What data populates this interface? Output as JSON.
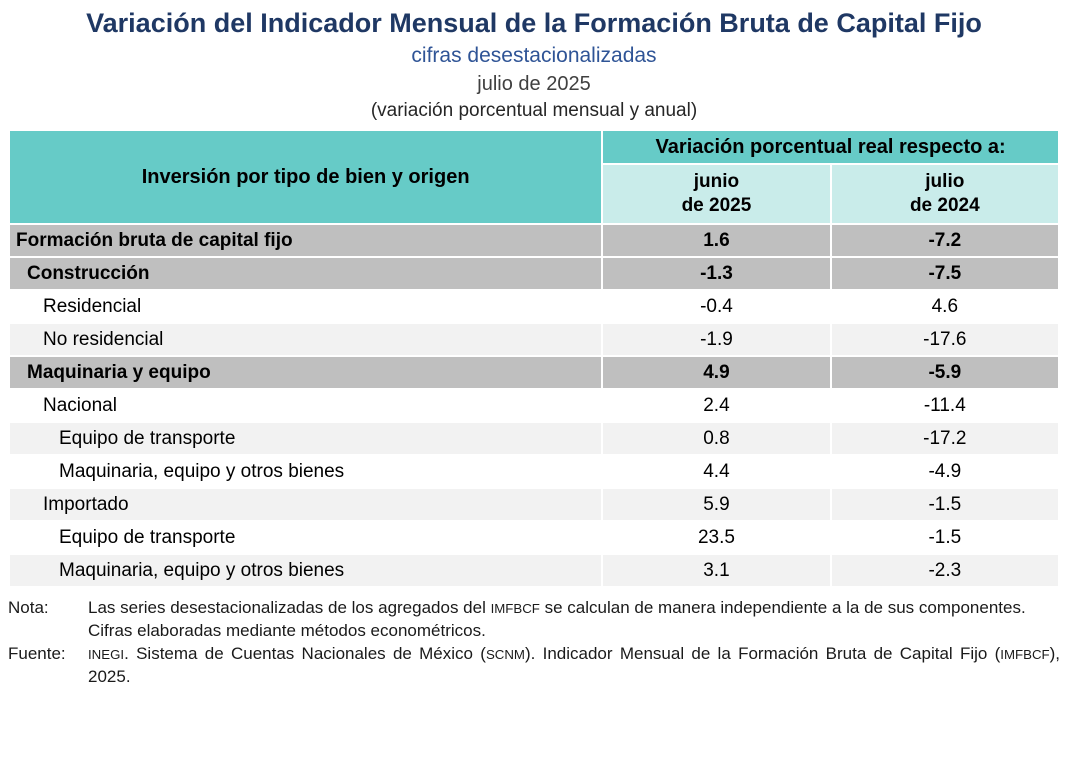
{
  "colors": {
    "title": "#1F3864",
    "subtitle": "#2F5496",
    "header_teal": "#66CBC7",
    "header_teal_light": "#C9ECEA",
    "row_gray": "#BFBFBF",
    "row_light": "#F2F2F2"
  },
  "chart_data": {
    "type": "table",
    "title": "Variación del Indicador Mensual de la Formación Bruta de Capital Fijo",
    "subtitle1": "cifras desestacionalizadas",
    "subtitle2": "julio de 2025",
    "subtitle3": "(variación porcentual mensual y anual)",
    "row_dimension_header": "Inversión por tipo de bien y origen",
    "col_group_header": "Variación porcentual real respecto a:",
    "columns": [
      "junio\nde 2025",
      "julio\nde 2024"
    ],
    "rows": [
      {
        "label": "Formación bruta de capital fijo",
        "values": [
          1.6,
          -7.2
        ],
        "style": "total",
        "indent": 0
      },
      {
        "label": "Construcción",
        "values": [
          -1.3,
          -7.5
        ],
        "style": "group",
        "indent": 1
      },
      {
        "label": "Residencial",
        "values": [
          -0.4,
          4.6
        ],
        "style": "plain",
        "indent": 2
      },
      {
        "label": "No residencial",
        "values": [
          -1.9,
          -17.6
        ],
        "style": "alt",
        "indent": 2
      },
      {
        "label": "Maquinaria y equipo",
        "values": [
          4.9,
          -5.9
        ],
        "style": "group",
        "indent": 1
      },
      {
        "label": "Nacional",
        "values": [
          2.4,
          -11.4
        ],
        "style": "plain",
        "indent": 2
      },
      {
        "label": "Equipo de transporte",
        "values": [
          0.8,
          -17.2
        ],
        "style": "alt",
        "indent": 3
      },
      {
        "label": "Maquinaria, equipo y otros bienes",
        "values": [
          4.4,
          -4.9
        ],
        "style": "plain",
        "indent": 3
      },
      {
        "label": "Importado",
        "values": [
          5.9,
          -1.5
        ],
        "style": "alt",
        "indent": 2
      },
      {
        "label": "Equipo de transporte",
        "values": [
          23.5,
          -1.5
        ],
        "style": "plain",
        "indent": 3
      },
      {
        "label": "Maquinaria, equipo y otros bienes",
        "values": [
          3.1,
          -2.3
        ],
        "style": "alt",
        "indent": 3
      }
    ]
  },
  "notes": {
    "nota_label": "Nota:",
    "nota_paragraph1": [
      {
        "t": "Las series desestacionalizadas de los agregados del ",
        "sc": false
      },
      {
        "t": "IMFBCF",
        "sc": true
      },
      {
        "t": " se calculan de manera independiente a la de sus componentes.",
        "sc": false
      }
    ],
    "nota_paragraph2": "Cifras elaboradas mediante métodos econométricos.",
    "fuente_label": "Fuente:",
    "fuente_paragraph": [
      {
        "t": "INEGI",
        "sc": true
      },
      {
        "t": ". Sistema de Cuentas Nacionales de México (",
        "sc": false
      },
      {
        "t": "SCNM",
        "sc": true
      },
      {
        "t": "). Indicador Mensual de la Formación Bruta de Capital Fijo (",
        "sc": false
      },
      {
        "t": "IMFBCF",
        "sc": true
      },
      {
        "t": "), 2025.",
        "sc": false
      }
    ]
  }
}
